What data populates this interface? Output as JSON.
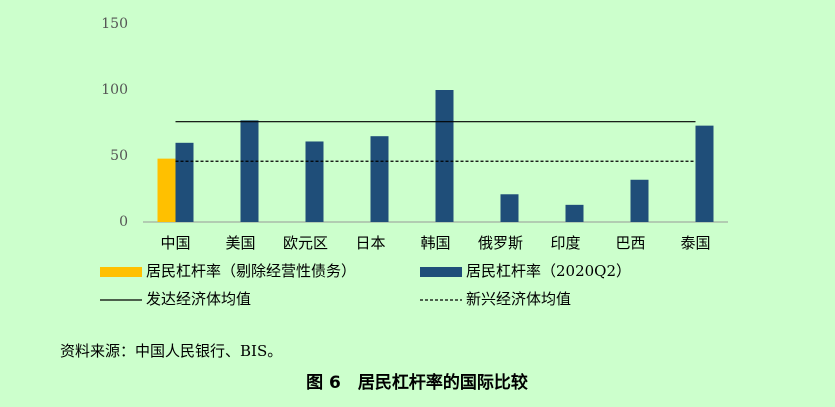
{
  "chart_data": {
    "type": "bar",
    "categories": [
      "中国",
      "美国",
      "欧元区",
      "日本",
      "韩国",
      "俄罗斯",
      "印度",
      "巴西",
      "泰国"
    ],
    "series": [
      {
        "name": "居民杠杆率（剔除经营性债务）",
        "color": "#ffc000",
        "values": [
          48,
          null,
          null,
          null,
          null,
          null,
          null,
          null,
          null
        ]
      },
      {
        "name": "居民杠杆率（2020Q2）",
        "color": "#1f4e79",
        "values": [
          60,
          77,
          61,
          65,
          100,
          21,
          13,
          32,
          73
        ]
      }
    ],
    "reference_lines": [
      {
        "name": "发达经济体均值",
        "value": 76,
        "style": "solid"
      },
      {
        "name": "新兴经济体均值",
        "value": 46,
        "style": "dashed"
      }
    ],
    "ylim": [
      0,
      150
    ],
    "yticks": [
      0,
      50,
      100,
      150
    ],
    "grid": false,
    "source": "资料来源：中国人民银行、BIS。",
    "caption": "图 6　居民杠杆率的国际比较"
  }
}
